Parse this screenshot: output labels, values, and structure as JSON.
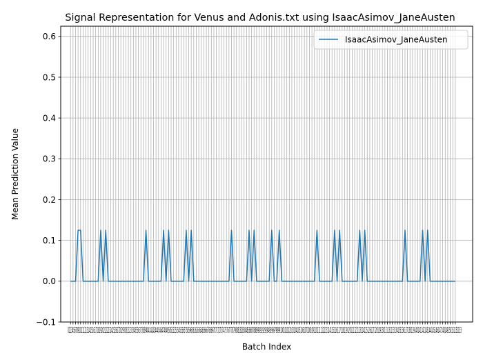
{
  "chart_data": {
    "type": "line",
    "title": "Signal Representation for Venus and Adonis.txt using IsaacAsimov_JaneAusten",
    "xlabel": "Batch Index",
    "ylabel": "Mean Prediction Value",
    "ylim": [
      -0.1,
      0.625
    ],
    "xlim": [
      -3.9,
      159.9
    ],
    "y_ticks": [
      "−0.1",
      "0.0",
      "0.1",
      "0.2",
      "0.3",
      "0.4",
      "0.5",
      "0.6"
    ],
    "x_tick_values": [
      0,
      153
    ],
    "x_tick_label_text": "0123456789101112131415161718192021222324252627282930313233343536373839404142434445464748495051525354555657585960616263646566676869707172737475767778798081828384858687888990919293949596979899100101102103104105106107108109110111112113114115116117118119120121122123124125126127128129130131132133134135136137138139140141142143144145146147148149150151152153",
    "grid": true,
    "legend_position": "top-right",
    "line_color": "#1f77b4",
    "series": [
      {
        "name": "IsaacAsimov_JaneAusten",
        "peaks": [
          {
            "x": [
              3,
              4
            ],
            "y": 0.125
          },
          {
            "x": [
              12
            ],
            "y": 0.125
          },
          {
            "x": [
              14
            ],
            "y": 0.125
          },
          {
            "x": [
              30
            ],
            "y": 0.125
          },
          {
            "x": [
              37
            ],
            "y": 0.125
          },
          {
            "x": [
              39
            ],
            "y": 0.125
          },
          {
            "x": [
              46
            ],
            "y": 0.125
          },
          {
            "x": [
              48
            ],
            "y": 0.125
          },
          {
            "x": [
              64
            ],
            "y": 0.125
          },
          {
            "x": [
              71
            ],
            "y": 0.125
          },
          {
            "x": [
              73
            ],
            "y": 0.125
          },
          {
            "x": [
              80
            ],
            "y": 0.125
          },
          {
            "x": [
              83
            ],
            "y": 0.125
          },
          {
            "x": [
              98
            ],
            "y": 0.125
          },
          {
            "x": [
              105
            ],
            "y": 0.125
          },
          {
            "x": [
              107
            ],
            "y": 0.125
          },
          {
            "x": [
              115
            ],
            "y": 0.125
          },
          {
            "x": [
              117
            ],
            "y": 0.125
          },
          {
            "x": [
              133
            ],
            "y": 0.125
          },
          {
            "x": [
              140
            ],
            "y": 0.125
          },
          {
            "x": [
              142
            ],
            "y": 0.125
          }
        ],
        "baseline": 0.0,
        "x_range": [
          0,
          153
        ]
      }
    ]
  }
}
